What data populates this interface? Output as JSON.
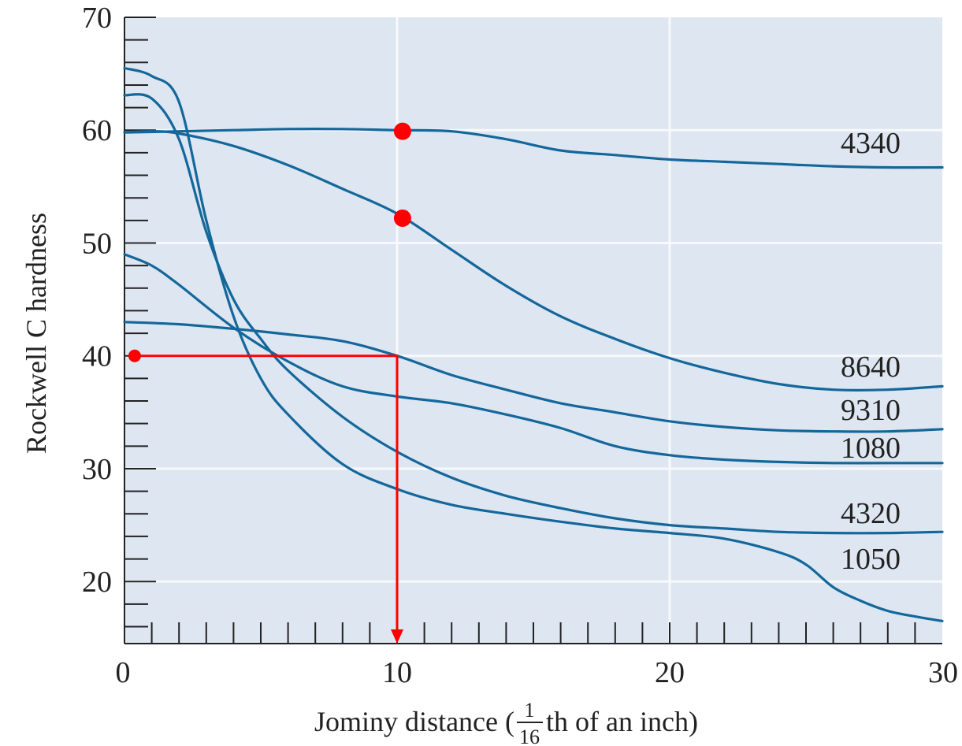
{
  "chart_data": {
    "type": "line",
    "title": "",
    "xlabel": "Jominy distance (",
    "xlabel_fraction_num": "1",
    "xlabel_fraction_den": "16",
    "xlabel_suffix": "th of an inch)",
    "ylabel": "Rockwell C hardness",
    "xlim": [
      0,
      30
    ],
    "ylim": [
      14.5,
      70
    ],
    "x_ticks": [
      "0",
      "10",
      "20",
      "30"
    ],
    "y_ticks": [
      "20",
      "30",
      "40",
      "50",
      "60",
      "70"
    ],
    "grid": true,
    "series": [
      {
        "name": "4340",
        "x": [
          0,
          2,
          4,
          6,
          8,
          10,
          12,
          14,
          16,
          18,
          20,
          22,
          24,
          26,
          28,
          30
        ],
        "y": [
          59.8,
          59.9,
          60.0,
          60.1,
          60.1,
          60.0,
          59.9,
          59.2,
          58.2,
          57.8,
          57.4,
          57.2,
          57.0,
          56.8,
          56.7,
          56.7
        ]
      },
      {
        "name": "8640",
        "x": [
          0,
          1,
          2,
          4,
          6,
          8,
          10,
          12,
          14,
          16,
          18,
          20,
          22,
          24,
          26,
          28,
          30
        ],
        "y": [
          59.8,
          59.9,
          59.7,
          58.6,
          56.9,
          54.8,
          52.6,
          49.4,
          46.2,
          43.5,
          41.5,
          39.8,
          38.5,
          37.5,
          37.0,
          37.0,
          37.3
        ]
      },
      {
        "name": "9310",
        "x": [
          0,
          2,
          4,
          6,
          8,
          10,
          12,
          14,
          16,
          18,
          20,
          22,
          24,
          26,
          28,
          30
        ],
        "y": [
          43.0,
          42.8,
          42.4,
          41.9,
          41.3,
          40.0,
          38.3,
          37.0,
          35.8,
          35.0,
          34.2,
          33.7,
          33.4,
          33.3,
          33.3,
          33.5
        ]
      },
      {
        "name": "1080",
        "x": [
          0,
          1,
          2,
          4,
          6,
          8,
          10,
          12,
          14,
          16,
          18,
          20,
          22,
          24,
          26,
          28,
          30
        ],
        "y": [
          49.0,
          48.0,
          46.3,
          42.5,
          39.5,
          37.3,
          36.4,
          35.8,
          34.8,
          33.6,
          32.0,
          31.2,
          30.8,
          30.6,
          30.5,
          30.5,
          30.5
        ]
      },
      {
        "name": "4320",
        "x": [
          0,
          1,
          2,
          3,
          4,
          5,
          6,
          8,
          10,
          12,
          14,
          16,
          18,
          20,
          22,
          24,
          26,
          28,
          30
        ],
        "y": [
          63.1,
          62.8,
          59.2,
          51.0,
          45.0,
          41.5,
          38.7,
          34.6,
          31.5,
          29.2,
          27.6,
          26.5,
          25.6,
          25.0,
          24.7,
          24.4,
          24.3,
          24.3,
          24.4
        ]
      },
      {
        "name": "1050",
        "x": [
          0,
          1,
          2,
          3,
          4,
          5,
          6,
          8,
          10,
          12,
          14,
          16,
          18,
          20,
          22,
          24,
          25,
          26,
          27,
          28,
          29,
          30
        ],
        "y": [
          65.5,
          64.8,
          62.5,
          52.0,
          43.5,
          38.0,
          34.8,
          30.4,
          28.2,
          26.8,
          26.0,
          25.3,
          24.7,
          24.3,
          23.8,
          22.6,
          21.5,
          19.5,
          18.3,
          17.4,
          16.9,
          16.5
        ]
      }
    ],
    "annotation": {
      "color": "#ff0000",
      "point_start": {
        "x": 0.2,
        "y": 40
      },
      "line_corner": {
        "x": 10,
        "y": 40
      },
      "arrow_end": {
        "x": 10,
        "y": 14.5
      },
      "markers": [
        {
          "x": 10.2,
          "y": 59.9
        },
        {
          "x": 10.2,
          "y": 52.2
        }
      ]
    },
    "colors": {
      "background": "#ffffff",
      "plot_area": "#dde6f1",
      "grid": "#f7f9fc",
      "axis": "#222222",
      "series": "#14679b",
      "annotation": "#ff0000"
    }
  }
}
